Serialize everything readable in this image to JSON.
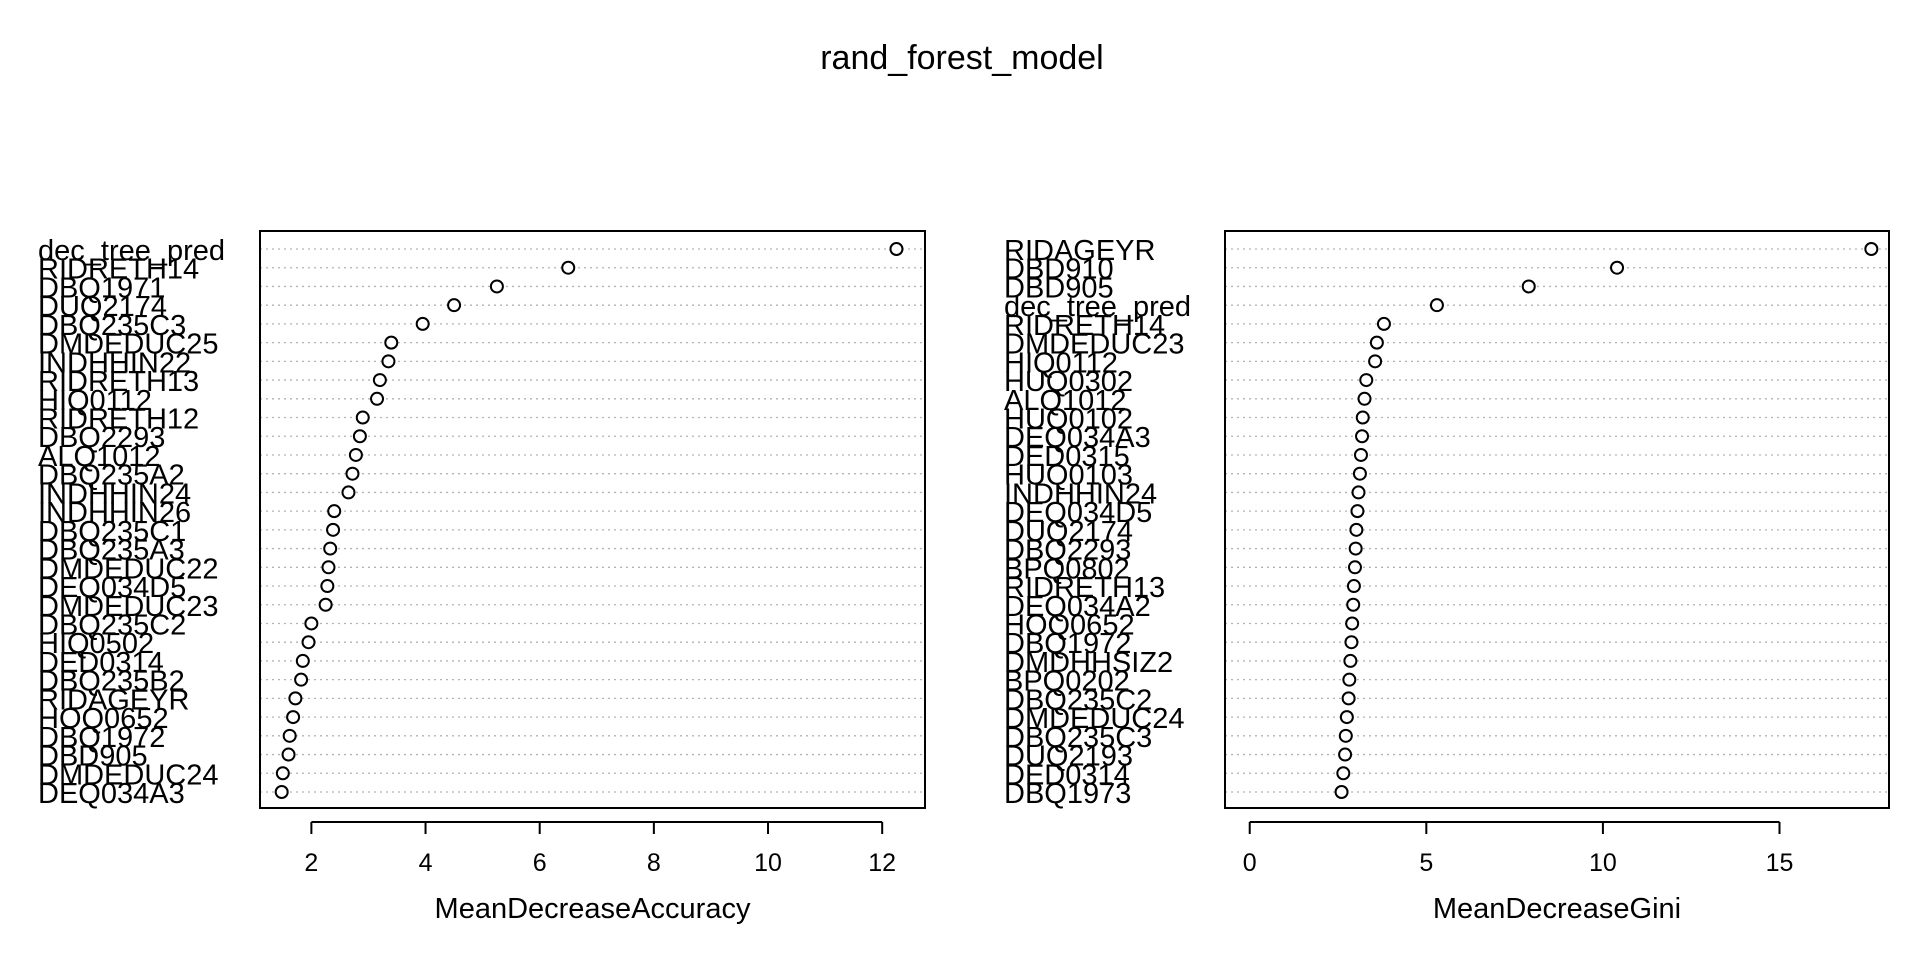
{
  "chart_data": {
    "type": "scatter",
    "title": "rand_forest_model",
    "panels": [
      {
        "xlabel": "MeanDecreaseAccuracy",
        "xlim": [
          1.1,
          12.75
        ],
        "xticks": [
          2,
          4,
          6,
          8,
          10,
          12
        ],
        "grid": "dotted horizontal",
        "variables": [
          "dec_tree_pred",
          "RIDRETH14",
          "DBQ1971",
          "DUQ2174",
          "DBQ235C3",
          "DMDEDUC25",
          "INDHHIN22",
          "RIDRETH13",
          "HIQ0112",
          "RIDRETH12",
          "DBQ2293",
          "ALQ1012",
          "DBQ235A2",
          "INDHHIN24",
          "INDHHIN26",
          "DBQ235C1",
          "DBQ235A3",
          "DMDEDUC22",
          "DEQ034D5",
          "DMDEDUC23",
          "DBQ235C2",
          "HIQ0502",
          "DED0314",
          "DBQ235B2",
          "RIDAGEYR",
          "HOQ0652",
          "DBQ1972",
          "DBD905",
          "DMDEDUC24",
          "DEQ034A3"
        ],
        "values": [
          12.25,
          6.5,
          5.25,
          4.5,
          3.95,
          3.4,
          3.35,
          3.2,
          3.15,
          2.9,
          2.85,
          2.78,
          2.72,
          2.65,
          2.4,
          2.38,
          2.33,
          2.3,
          2.28,
          2.25,
          2.0,
          1.95,
          1.85,
          1.82,
          1.72,
          1.68,
          1.62,
          1.6,
          1.5,
          1.48
        ]
      },
      {
        "xlabel": "MeanDecreaseGini",
        "xlim": [
          -0.7,
          18.1
        ],
        "xticks": [
          0,
          5,
          10,
          15
        ],
        "grid": "dotted horizontal",
        "variables": [
          "RIDAGEYR",
          "DBD910",
          "DBD905",
          "dec_tree_pred",
          "RIDRETH14",
          "DMDEDUC23",
          "HIQ0112",
          "HUQ0302",
          "ALQ1012",
          "HUQ0102",
          "DEQ034A3",
          "DED0315",
          "HUQ0103",
          "INDHHIN24",
          "DEQ034D5",
          "DUQ2174",
          "DBQ2293",
          "BPQ0802",
          "RIDRETH13",
          "DEQ034A2",
          "HOQ0652",
          "DBQ1972",
          "DMDHHSIZ2",
          "BPQ0202",
          "DBQ235C2",
          "DMDEDUC24",
          "DBQ235C3",
          "DUQ2193",
          "DED0314",
          "DBQ1973"
        ],
        "values": [
          17.6,
          10.4,
          7.9,
          5.3,
          3.8,
          3.6,
          3.55,
          3.3,
          3.25,
          3.2,
          3.18,
          3.15,
          3.12,
          3.08,
          3.05,
          3.02,
          3.0,
          2.98,
          2.95,
          2.93,
          2.9,
          2.88,
          2.85,
          2.82,
          2.8,
          2.75,
          2.72,
          2.7,
          2.65,
          2.6
        ]
      }
    ]
  }
}
